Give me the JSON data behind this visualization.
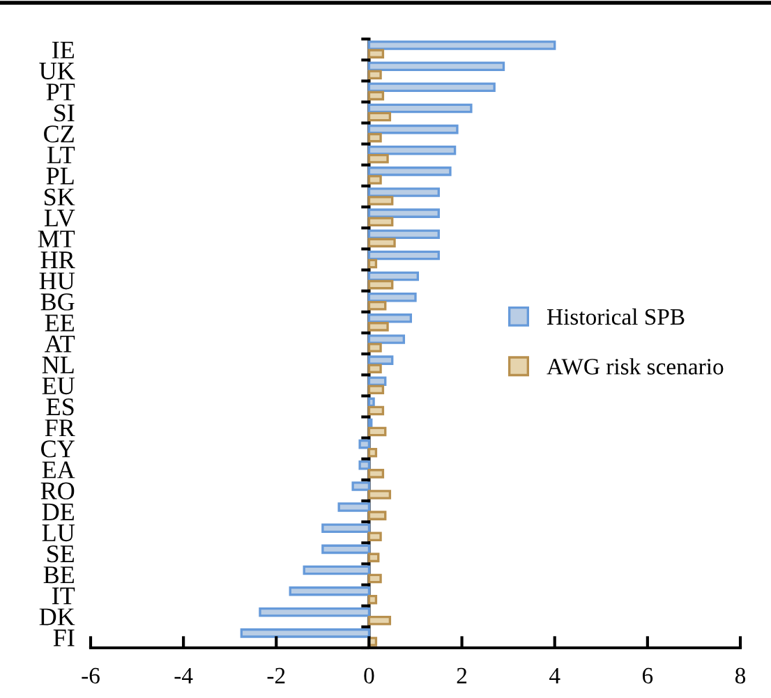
{
  "chart_data": {
    "type": "bar",
    "orientation": "horizontal",
    "categories": [
      "IE",
      "UK",
      "PT",
      "SI",
      "CZ",
      "LT",
      "PL",
      "SK",
      "LV",
      "MT",
      "HR",
      "HU",
      "BG",
      "EE",
      "AT",
      "NL",
      "EU",
      "ES",
      "FR",
      "CY",
      "EA",
      "RO",
      "DE",
      "LU",
      "SE",
      "BE",
      "IT",
      "DK",
      "FI"
    ],
    "series": [
      {
        "name": "Historical SPB",
        "color": "#b9cde5",
        "values": [
          4.0,
          2.9,
          2.7,
          2.2,
          1.9,
          1.85,
          1.75,
          1.5,
          1.5,
          1.5,
          1.5,
          1.05,
          1.0,
          0.9,
          0.75,
          0.5,
          0.35,
          0.1,
          0.05,
          -0.2,
          -0.2,
          -0.35,
          -0.65,
          -1.0,
          -1.0,
          -1.4,
          -1.7,
          -2.35,
          -2.75
        ]
      },
      {
        "name": "AWG risk scenario",
        "color": "#e6d4ad",
        "values": [
          0.3,
          0.25,
          0.3,
          0.45,
          0.25,
          0.4,
          0.25,
          0.5,
          0.5,
          0.55,
          0.15,
          0.5,
          0.35,
          0.4,
          0.25,
          0.25,
          0.3,
          0.3,
          0.35,
          0.15,
          0.3,
          0.45,
          0.35,
          0.25,
          0.2,
          0.25,
          0.15,
          0.45,
          0.15
        ]
      }
    ],
    "xlim": [
      -6,
      8
    ],
    "xticks": [
      -6,
      -4,
      -2,
      0,
      2,
      4,
      6,
      8
    ],
    "legend": "right"
  }
}
